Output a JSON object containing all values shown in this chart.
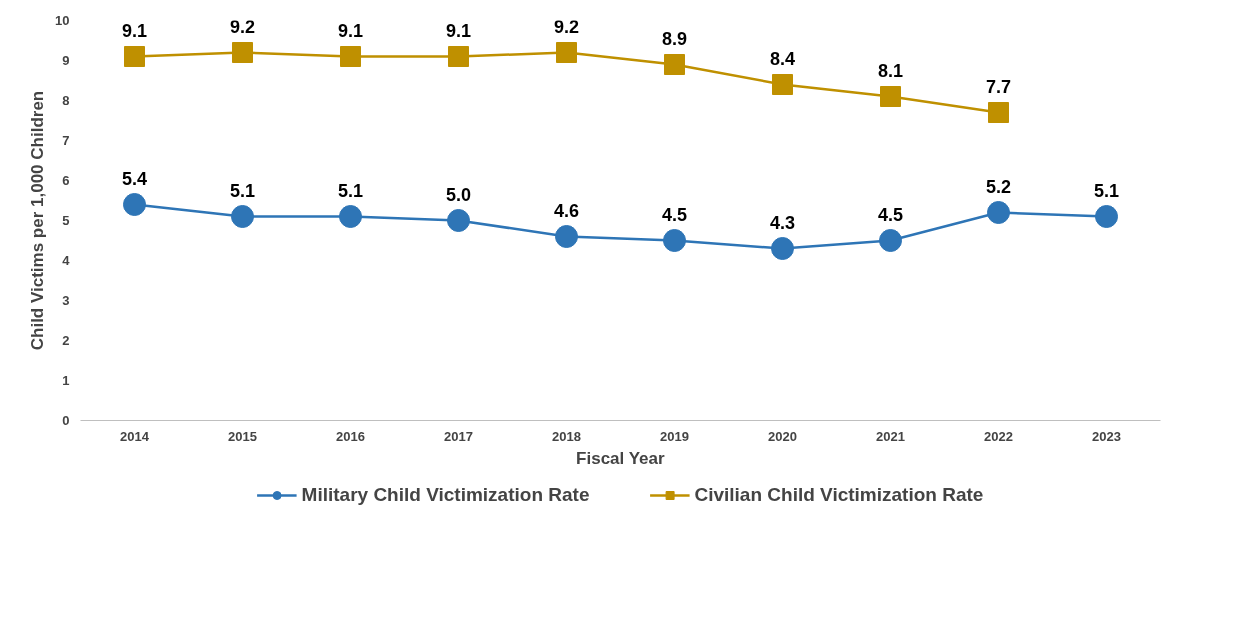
{
  "chart_data": {
    "type": "line",
    "xlabel": "Fiscal Year",
    "ylabel": "Child Victims per 1,000 Children",
    "categories": [
      "2014",
      "2015",
      "2016",
      "2017",
      "2018",
      "2019",
      "2020",
      "2021",
      "2022",
      "2023"
    ],
    "series": [
      {
        "name": "Military Child Victimization Rate",
        "color": "#2e75b6",
        "marker": "circle",
        "values": [
          5.4,
          5.1,
          5.1,
          5.0,
          4.6,
          4.5,
          4.3,
          4.5,
          5.2,
          5.1
        ],
        "value_labels": [
          "5.4",
          "5.1",
          "5.1",
          "5.0",
          "4.6",
          "4.5",
          "4.3",
          "4.5",
          "5.2",
          "5.1"
        ]
      },
      {
        "name": "Civilian Child Victimization Rate",
        "color": "#bf9000",
        "marker": "square",
        "values": [
          9.1,
          9.2,
          9.1,
          9.1,
          9.2,
          8.9,
          8.4,
          8.1,
          7.7,
          null
        ],
        "value_labels": [
          "9.1",
          "9.2",
          "9.1",
          "9.1",
          "9.2",
          "8.9",
          "8.4",
          "8.1",
          "7.7",
          null
        ]
      }
    ],
    "ylim": [
      0,
      10
    ],
    "yticks": [
      0,
      1,
      2,
      3,
      4,
      5,
      6,
      7,
      8,
      9,
      10
    ],
    "grid": false,
    "legend": "bottom"
  }
}
